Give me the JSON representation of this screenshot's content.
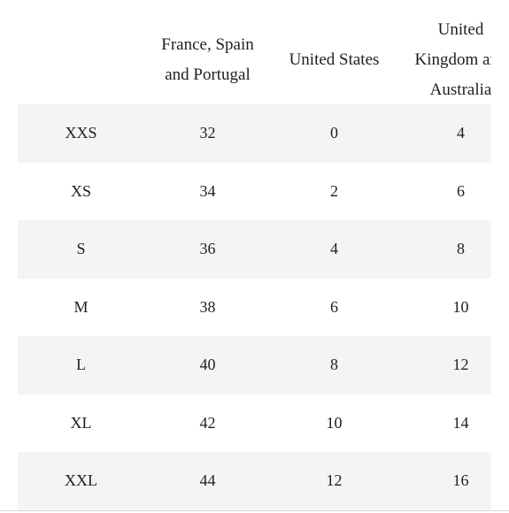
{
  "table": {
    "headers": [
      {
        "lines": [
          ""
        ]
      },
      {
        "lines": [
          "France, Spain",
          "and Portugal"
        ]
      },
      {
        "lines": [
          "United States"
        ]
      },
      {
        "lines": [
          "United",
          "Kingdom and",
          "Australia"
        ]
      }
    ],
    "rows": [
      [
        "XXS",
        "32",
        "0",
        "4"
      ],
      [
        "XS",
        "34",
        "2",
        "6"
      ],
      [
        "S",
        "36",
        "4",
        "8"
      ],
      [
        "M",
        "38",
        "6",
        "10"
      ],
      [
        "L",
        "40",
        "8",
        "12"
      ],
      [
        "XL",
        "42",
        "10",
        "14"
      ],
      [
        "XXL",
        "44",
        "12",
        "16"
      ]
    ]
  }
}
